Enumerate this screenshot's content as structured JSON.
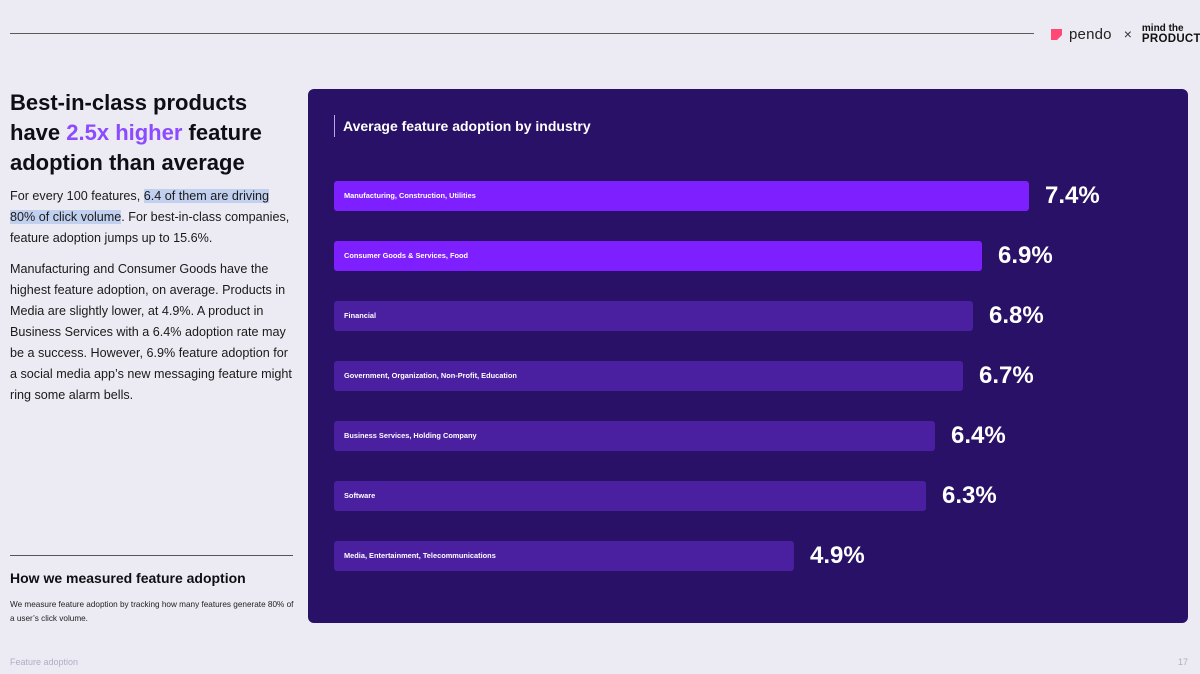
{
  "brand": {
    "pendo": "pendo",
    "separator": "×",
    "mtp_top": "mind the",
    "mtp_bottom": "PRODUCT"
  },
  "colors": {
    "accent": "#8c4bff",
    "panel": "#281166",
    "bar_top": "#7e1fff",
    "bar_rest": "#4a1fa0",
    "highlight": "#c2d0f0"
  },
  "left": {
    "headline_a": "Best-in-class products have ",
    "headline_accent": "2.5x higher",
    "headline_b": " feature adoption than average",
    "para1_a": "For every 100 features, ",
    "para1_hl": "6.4 of them are driving 80% of click volume",
    "para1_b": ". For best-in-class companies, feature adoption jumps up to 15.6%.",
    "para2": "Manufacturing and Consumer Goods have the highest feature adoption, on average. Products in Media are slightly lower, at 4.9%. A product in Business Services with a 6.4% adoption rate may be a success. However, 6.9% feature adoption for a social media app’s new messaging feature might ring some alarm bells.",
    "method_title": "How we measured feature adoption",
    "method_text": "We measure feature adoption by tracking how many features generate 80% of a user’s click volume."
  },
  "footer": {
    "section": "Feature adoption",
    "page": "17"
  },
  "chart_data": {
    "type": "bar",
    "orientation": "horizontal",
    "title": "Average feature adoption by industry",
    "unit": "%",
    "xlim": [
      0,
      7.4
    ],
    "grid": false,
    "categories": [
      "Manufacturing, Construction, Utilities",
      "Consumer Goods & Services, Food",
      "Financial",
      "Government, Organization, Non-Profit, Education",
      "Business Services, Holding Company",
      "Software",
      "Media, Entertainment, Telecommunications"
    ],
    "values": [
      7.4,
      6.9,
      6.8,
      6.7,
      6.4,
      6.3,
      4.9
    ],
    "value_labels": [
      "7.4%",
      "6.9%",
      "6.8%",
      "6.7%",
      "6.4%",
      "6.3%",
      "4.9%"
    ]
  }
}
